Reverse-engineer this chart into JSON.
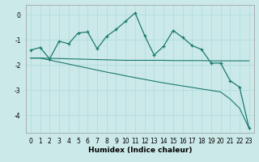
{
  "xlabel": "Humidex (Indice chaleur)",
  "ylabel": "",
  "background_color": "#cce9e9",
  "line_color": "#1a7a6e",
  "x_data": [
    0,
    1,
    2,
    3,
    4,
    5,
    6,
    7,
    8,
    9,
    10,
    11,
    12,
    13,
    14,
    15,
    16,
    17,
    18,
    19,
    20,
    21,
    22,
    23
  ],
  "y_jagged": [
    -1.4,
    -1.3,
    -1.75,
    -1.05,
    -1.15,
    -0.72,
    -0.68,
    -1.35,
    -0.85,
    -0.58,
    -0.25,
    0.08,
    -0.82,
    -1.6,
    -1.25,
    -0.62,
    -0.9,
    -1.22,
    -1.38,
    -1.92,
    -1.92,
    -2.62,
    -2.88,
    -4.52
  ],
  "y_line1": [
    -1.72,
    -1.72,
    -1.73,
    -1.74,
    -1.75,
    -1.76,
    -1.77,
    -1.78,
    -1.79,
    -1.8,
    -1.81,
    -1.81,
    -1.81,
    -1.81,
    -1.81,
    -1.82,
    -1.82,
    -1.82,
    -1.82,
    -1.83,
    -1.83,
    -1.83,
    -1.83,
    -1.83
  ],
  "y_line2": [
    -1.72,
    -1.72,
    -1.8,
    -1.88,
    -1.96,
    -2.04,
    -2.12,
    -2.2,
    -2.28,
    -2.35,
    -2.43,
    -2.5,
    -2.57,
    -2.64,
    -2.71,
    -2.77,
    -2.83,
    -2.89,
    -2.95,
    -3.01,
    -3.07,
    -3.35,
    -3.72,
    -4.52
  ],
  "xlim": [
    -0.5,
    23.5
  ],
  "ylim": [
    -4.7,
    0.4
  ],
  "yticks": [
    0,
    -1,
    -2,
    -3,
    -4
  ],
  "xticks": [
    0,
    1,
    2,
    3,
    4,
    5,
    6,
    7,
    8,
    9,
    10,
    11,
    12,
    13,
    14,
    15,
    16,
    17,
    18,
    19,
    20,
    21,
    22,
    23
  ],
  "grid_color": "#aadada",
  "tick_fontsize": 5.5,
  "xlabel_fontsize": 6.5
}
